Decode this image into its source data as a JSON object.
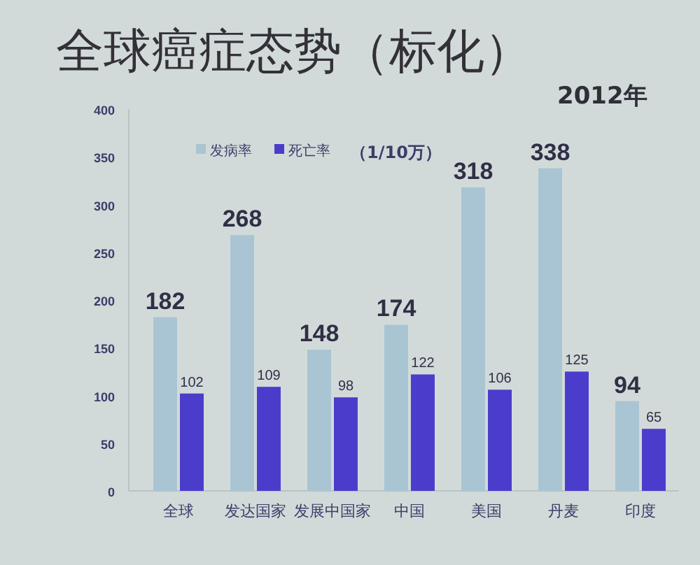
{
  "chart_data": {
    "type": "bar",
    "title": "全球癌症态势（标化）",
    "subtitle": "2012年",
    "annotations": [
      "（1/10万）"
    ],
    "categories": [
      "全球",
      "发达国家",
      "发展中国家",
      "中国",
      "美国",
      "丹麦",
      "印度"
    ],
    "series": [
      {
        "name": "发病率",
        "color": "#a9c5d3",
        "values": [
          182,
          268,
          148,
          174,
          318,
          338,
          94
        ]
      },
      {
        "name": "死亡率",
        "color": "#4a3dcc",
        "values": [
          102,
          109,
          98,
          122,
          106,
          125,
          65
        ]
      }
    ],
    "ylim": [
      0,
      400
    ],
    "yticks": [
      0,
      50,
      100,
      150,
      200,
      250,
      300,
      350,
      400
    ],
    "legend": "top",
    "data_labels": true
  }
}
